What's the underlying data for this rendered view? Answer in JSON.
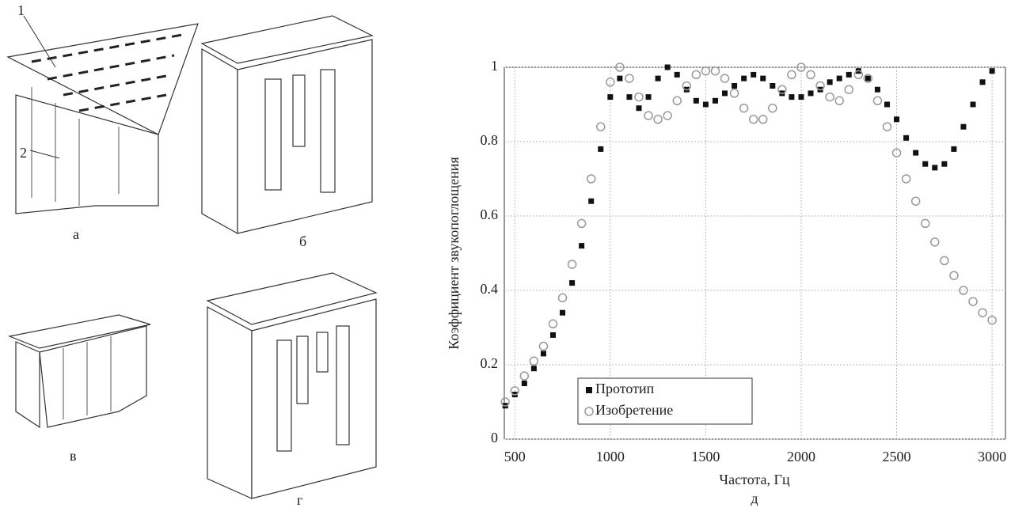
{
  "figure_labels": {
    "a": "а",
    "b": "б",
    "v": "в",
    "g": "г",
    "callout1": "1",
    "callout2": "2"
  },
  "chart_data": {
    "type": "scatter",
    "panel_label": "д",
    "x_label": "Частота, Гц",
    "y_label": "Коэффициент звукопоглощения",
    "xlim": [
      445,
      3070
    ],
    "ylim": [
      0,
      1
    ],
    "xticks": [
      500,
      1000,
      1500,
      2000,
      2500,
      3000
    ],
    "yticks": [
      0,
      0.2,
      0.4,
      0.6,
      0.8,
      1
    ],
    "grid": true,
    "legend": "lower-left",
    "x": [
      450,
      500,
      550,
      600,
      650,
      700,
      750,
      800,
      850,
      900,
      950,
      1000,
      1050,
      1100,
      1150,
      1200,
      1250,
      1300,
      1350,
      1400,
      1450,
      1500,
      1550,
      1600,
      1650,
      1700,
      1750,
      1800,
      1850,
      1900,
      1950,
      2000,
      2050,
      2100,
      2150,
      2200,
      2250,
      2300,
      2350,
      2400,
      2450,
      2500,
      2550,
      2600,
      2650,
      2700,
      2750,
      2800,
      2850,
      2900,
      2950,
      3000
    ],
    "series": [
      {
        "name": "Прототип",
        "color": "#111111",
        "marker": "square",
        "values": [
          0.09,
          0.12,
          0.15,
          0.19,
          0.23,
          0.28,
          0.34,
          0.42,
          0.52,
          0.64,
          0.78,
          0.92,
          0.97,
          0.92,
          0.89,
          0.92,
          0.97,
          1.0,
          0.98,
          0.94,
          0.91,
          0.9,
          0.91,
          0.93,
          0.95,
          0.97,
          0.98,
          0.97,
          0.95,
          0.93,
          0.92,
          0.92,
          0.93,
          0.94,
          0.96,
          0.97,
          0.98,
          0.99,
          0.97,
          0.94,
          0.9,
          0.86,
          0.81,
          0.77,
          0.74,
          0.73,
          0.74,
          0.78,
          0.84,
          0.9,
          0.96,
          0.99
        ]
      },
      {
        "name": "Изобретение",
        "color": "#999999",
        "marker": "circle",
        "values": [
          0.1,
          0.13,
          0.17,
          0.21,
          0.25,
          0.31,
          0.38,
          0.47,
          0.58,
          0.7,
          0.84,
          0.96,
          1.0,
          0.97,
          0.92,
          0.87,
          0.86,
          0.87,
          0.91,
          0.95,
          0.98,
          0.99,
          0.99,
          0.97,
          0.93,
          0.89,
          0.86,
          0.86,
          0.89,
          0.94,
          0.98,
          1.0,
          0.98,
          0.95,
          0.92,
          0.91,
          0.94,
          0.98,
          0.97,
          0.91,
          0.84,
          0.77,
          0.7,
          0.64,
          0.58,
          0.53,
          0.48,
          0.44,
          0.4,
          0.37,
          0.34,
          0.32
        ]
      }
    ]
  }
}
